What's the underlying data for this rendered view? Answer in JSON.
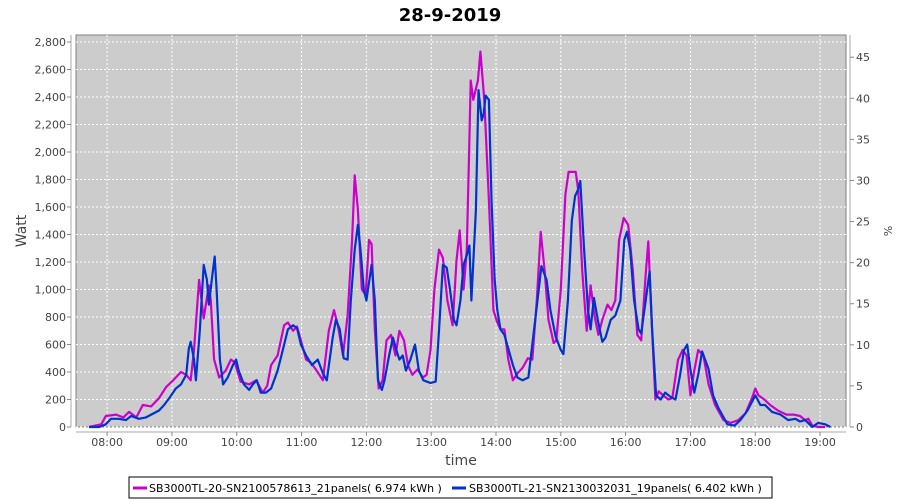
{
  "chart_data": {
    "type": "line",
    "title": "28-9-2019",
    "xlabel": "time",
    "ylabel": "Watt",
    "y2label": "%",
    "xlim_hours": [
      7.52,
      19.4
    ],
    "ylim": [
      0,
      2851
    ],
    "y2lim": [
      0,
      47.7
    ],
    "grid": true,
    "legend_position": "bottom",
    "x_ticks": [
      {
        "value": 8,
        "label": "08:00"
      },
      {
        "value": 9,
        "label": "09:00"
      },
      {
        "value": 10,
        "label": "10:00"
      },
      {
        "value": 11,
        "label": "11:00"
      },
      {
        "value": 12,
        "label": "12:00"
      },
      {
        "value": 13,
        "label": "13:00"
      },
      {
        "value": 14,
        "label": "14:00"
      },
      {
        "value": 15,
        "label": "15:00"
      },
      {
        "value": 16,
        "label": "16:00"
      },
      {
        "value": 17,
        "label": "17:00"
      },
      {
        "value": 18,
        "label": "18:00"
      },
      {
        "value": 19,
        "label": "19:00"
      }
    ],
    "y_ticks": [
      {
        "value": 0,
        "label": "0"
      },
      {
        "value": 200,
        "label": "200"
      },
      {
        "value": 400,
        "label": "400"
      },
      {
        "value": 600,
        "label": "600"
      },
      {
        "value": 800,
        "label": "800"
      },
      {
        "value": 1000,
        "label": "1,000"
      },
      {
        "value": 1200,
        "label": "1,200"
      },
      {
        "value": 1400,
        "label": "1,400"
      },
      {
        "value": 1600,
        "label": "1,600"
      },
      {
        "value": 1800,
        "label": "1,800"
      },
      {
        "value": 2000,
        "label": "2,000"
      },
      {
        "value": 2200,
        "label": "2,200"
      },
      {
        "value": 2400,
        "label": "2,400"
      },
      {
        "value": 2600,
        "label": "2,600"
      },
      {
        "value": 2800,
        "label": "2,800"
      }
    ],
    "y2_ticks": [
      {
        "value": 0,
        "label": "0"
      },
      {
        "value": 5,
        "label": "5"
      },
      {
        "value": 10,
        "label": "10"
      },
      {
        "value": 15,
        "label": "15"
      },
      {
        "value": 20,
        "label": "20"
      },
      {
        "value": 25,
        "label": "25"
      },
      {
        "value": 30,
        "label": "30"
      },
      {
        "value": 35,
        "label": "35"
      },
      {
        "value": 40,
        "label": "40"
      },
      {
        "value": 45,
        "label": "45"
      }
    ],
    "series": [
      {
        "name": "SB3000TL-20-SN2100578613_21panels( 6.974 kWh )",
        "color": "#cc00cc",
        "x": [
          7.72,
          7.91,
          7.98,
          8.14,
          8.25,
          8.34,
          8.45,
          8.55,
          8.68,
          8.8,
          8.91,
          9.02,
          9.14,
          9.22,
          9.29,
          9.34,
          9.42,
          9.49,
          9.57,
          9.6,
          9.65,
          9.73,
          9.83,
          9.91,
          9.97,
          10.06,
          10.19,
          10.3,
          10.4,
          10.47,
          10.53,
          10.63,
          10.73,
          10.79,
          10.87,
          10.93,
          10.99,
          11.07,
          11.14,
          11.22,
          11.33,
          11.42,
          11.5,
          11.56,
          11.64,
          11.71,
          11.78,
          11.82,
          11.87,
          11.93,
          11.99,
          12.04,
          12.08,
          12.13,
          12.19,
          12.25,
          12.31,
          12.38,
          12.45,
          12.51,
          12.58,
          12.64,
          12.71,
          12.79,
          12.87,
          12.93,
          12.99,
          13.05,
          13.12,
          13.18,
          13.25,
          13.33,
          13.39,
          13.44,
          13.5,
          13.55,
          13.59,
          13.61,
          13.65,
          13.72,
          13.76,
          13.82,
          13.89,
          13.96,
          14.02,
          14.07,
          14.13,
          14.19,
          14.26,
          14.33,
          14.41,
          14.49,
          14.56,
          14.63,
          14.69,
          14.75,
          14.81,
          14.89,
          14.93,
          15.0,
          15.07,
          15.12,
          15.23,
          15.27,
          15.33,
          15.4,
          15.46,
          15.52,
          15.58,
          15.64,
          15.72,
          15.78,
          15.84,
          15.9,
          15.97,
          16.04,
          16.11,
          16.18,
          16.24,
          16.31,
          16.35,
          16.4,
          16.46,
          16.51,
          16.58,
          16.66,
          16.72,
          16.81,
          16.88,
          16.94,
          17.0,
          17.06,
          17.12,
          17.2,
          17.28,
          17.38,
          17.51,
          17.62,
          17.74,
          17.85,
          17.95,
          18.0,
          18.05,
          18.14,
          18.23,
          18.35,
          18.48,
          18.59,
          18.69,
          18.77,
          18.82,
          18.88,
          18.97,
          19.08
        ],
        "y": [
          0,
          20,
          80,
          90,
          70,
          110,
          70,
          160,
          150,
          210,
          290,
          340,
          400,
          380,
          340,
          560,
          1070,
          790,
          1030,
          920,
          490,
          360,
          410,
          490,
          470,
          330,
          310,
          340,
          250,
          300,
          450,
          520,
          740,
          760,
          700,
          730,
          630,
          490,
          470,
          420,
          340,
          700,
          850,
          740,
          520,
          810,
          1360,
          1830,
          1580,
          1000,
          960,
          1360,
          1330,
          710,
          280,
          340,
          630,
          670,
          520,
          700,
          630,
          450,
          380,
          420,
          360,
          380,
          560,
          1000,
          1290,
          1230,
          920,
          740,
          1210,
          1430,
          1000,
          1290,
          2090,
          2520,
          2380,
          2520,
          2730,
          2380,
          1650,
          850,
          760,
          710,
          710,
          490,
          340,
          390,
          430,
          500,
          490,
          920,
          1420,
          1140,
          780,
          610,
          630,
          1000,
          1690,
          1855,
          1855,
          1720,
          1140,
          700,
          1030,
          810,
          670,
          780,
          890,
          850,
          920,
          1360,
          1520,
          1470,
          1140,
          670,
          630,
          1110,
          1350,
          780,
          200,
          260,
          230,
          200,
          210,
          490,
          560,
          520,
          230,
          410,
          560,
          520,
          310,
          160,
          50,
          30,
          50,
          100,
          210,
          280,
          230,
          200,
          160,
          120,
          90,
          90,
          80,
          50,
          60,
          10,
          0,
          0
        ]
      },
      {
        "name": "SB3000TL-21-SN2130032031_19panels( 6.402 kWh )",
        "color": "#0033cc",
        "x": [
          7.72,
          7.88,
          7.98,
          8.06,
          8.18,
          8.29,
          8.37,
          8.49,
          8.6,
          8.68,
          8.8,
          8.88,
          8.96,
          9.06,
          9.14,
          9.22,
          9.26,
          9.29,
          9.34,
          9.37,
          9.43,
          9.49,
          9.54,
          9.57,
          9.62,
          9.66,
          9.69,
          9.74,
          9.79,
          9.86,
          9.94,
          9.99,
          10.03,
          10.11,
          10.19,
          10.25,
          10.31,
          10.37,
          10.45,
          10.53,
          10.63,
          10.71,
          10.79,
          10.87,
          10.93,
          10.99,
          11.07,
          11.16,
          11.25,
          11.33,
          11.39,
          11.48,
          11.53,
          11.59,
          11.65,
          11.71,
          11.76,
          11.82,
          11.87,
          11.91,
          11.96,
          12.0,
          12.04,
          12.08,
          12.13,
          12.18,
          12.24,
          12.28,
          12.35,
          12.41,
          12.47,
          12.51,
          12.56,
          12.61,
          12.68,
          12.75,
          12.81,
          12.88,
          12.99,
          13.07,
          13.12,
          13.18,
          13.24,
          13.29,
          13.35,
          13.39,
          13.45,
          13.5,
          13.55,
          13.59,
          13.62,
          13.69,
          13.73,
          13.78,
          13.81,
          13.84,
          13.89,
          13.93,
          13.98,
          14.02,
          14.07,
          14.13,
          14.19,
          14.26,
          14.33,
          14.41,
          14.5,
          14.56,
          14.64,
          14.7,
          14.78,
          14.84,
          14.92,
          15.0,
          15.04,
          15.11,
          15.17,
          15.22,
          15.26,
          15.3,
          15.36,
          15.42,
          15.46,
          15.51,
          15.57,
          15.64,
          15.69,
          15.77,
          15.84,
          15.92,
          15.98,
          16.02,
          16.07,
          16.13,
          16.2,
          16.24,
          16.31,
          16.37,
          16.41,
          16.47,
          16.54,
          16.61,
          16.69,
          16.77,
          16.84,
          16.9,
          16.95,
          17.0,
          17.06,
          17.12,
          17.18,
          17.28,
          17.35,
          17.43,
          17.57,
          17.68,
          17.77,
          17.88,
          18.0,
          18.08,
          18.15,
          18.26,
          18.39,
          18.51,
          18.62,
          18.69,
          18.77,
          18.88,
          18.97,
          19.08,
          19.16
        ],
        "y": [
          0,
          0,
          20,
          60,
          60,
          50,
          80,
          60,
          70,
          90,
          120,
          160,
          210,
          280,
          310,
          380,
          570,
          620,
          490,
          340,
          700,
          1180,
          1070,
          890,
          1090,
          1240,
          1000,
          490,
          310,
          360,
          450,
          490,
          410,
          310,
          270,
          310,
          340,
          250,
          250,
          280,
          410,
          560,
          710,
          740,
          720,
          600,
          520,
          450,
          490,
          390,
          340,
          650,
          780,
          710,
          500,
          490,
          920,
          1290,
          1470,
          1290,
          1000,
          920,
          1050,
          1180,
          920,
          340,
          270,
          340,
          520,
          650,
          550,
          490,
          520,
          410,
          490,
          600,
          410,
          340,
          320,
          330,
          700,
          1180,
          1160,
          1000,
          780,
          740,
          920,
          1180,
          1250,
          1320,
          920,
          1580,
          2450,
          2230,
          2280,
          2410,
          2380,
          1650,
          1070,
          850,
          710,
          670,
          570,
          450,
          360,
          340,
          360,
          600,
          920,
          1170,
          1070,
          850,
          660,
          560,
          530,
          920,
          1500,
          1680,
          1720,
          1790,
          1290,
          850,
          710,
          940,
          780,
          620,
          650,
          780,
          810,
          920,
          1360,
          1420,
          1290,
          920,
          710,
          680,
          920,
          1130,
          700,
          230,
          200,
          250,
          220,
          200,
          380,
          560,
          600,
          420,
          250,
          380,
          550,
          420,
          230,
          140,
          20,
          10,
          50,
          120,
          230,
          160,
          160,
          110,
          90,
          50,
          60,
          40,
          50,
          0,
          30,
          20,
          0
        ]
      }
    ]
  }
}
